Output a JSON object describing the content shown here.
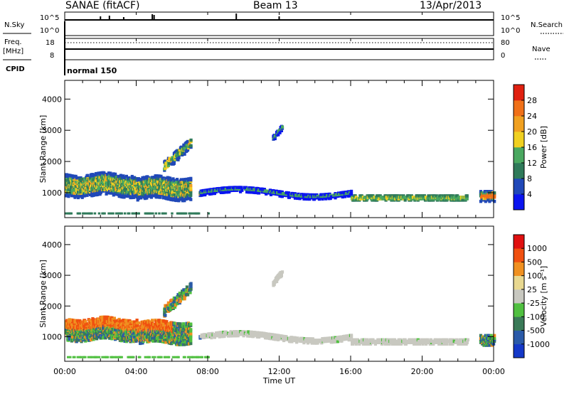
{
  "header": {
    "station": "SANAE (fitACF)",
    "beam": "Beam 13",
    "date": "13/Apr/2013"
  },
  "summary_panel": {
    "nsky_label": "N.Sky",
    "nsky_ticks": [
      "10^5",
      "10^0"
    ],
    "nsearch_label": "N.Search",
    "nsearch_ticks": [
      "10^5",
      "10^0"
    ],
    "freq_label_line1": "Freq.",
    "freq_label_line2": "[MHz]",
    "freq_ticks": [
      "18",
      "8"
    ],
    "nave_label": "Nave",
    "nave_ticks": [
      "80",
      "0"
    ],
    "cpid_label": "CPID",
    "cpid_value": "normal 150"
  },
  "chart_data": [
    {
      "type": "heatmap",
      "title": "",
      "xlabel": "",
      "ylabel": "Slant Range [km]",
      "y_ticks": [
        "1000",
        "2000",
        "3000",
        "4000"
      ],
      "ylim": [
        200,
        4600
      ],
      "xlim": [
        0,
        24
      ],
      "colorbar": {
        "label": "Power [dB]",
        "ticks": [
          "4",
          "8",
          "12",
          "16",
          "20",
          "24",
          "28"
        ],
        "colors": [
          "#0a14f0",
          "#2048b8",
          "#2f7a5a",
          "#4aa860",
          "#f0d020",
          "#f0a020",
          "#f07018",
          "#e02010"
        ]
      }
    },
    {
      "type": "heatmap",
      "title": "",
      "xlabel": "Time UT",
      "ylabel": "Slant Range [km]",
      "y_ticks": [
        "1000",
        "2000",
        "3000",
        "4000"
      ],
      "x_ticks": [
        "00:00",
        "04:00",
        "08:00",
        "12:00",
        "16:00",
        "20:00",
        "00:00"
      ],
      "ylim": [
        200,
        4600
      ],
      "xlim": [
        0,
        24
      ],
      "colorbar": {
        "label": "Velocity [m s⁻¹]",
        "ticks": [
          "1000",
          "500",
          "100",
          "25",
          "-25",
          "-100",
          "-500",
          "-1000"
        ],
        "colors": [
          "#1438c8",
          "#2a5aa8",
          "#3a7a58",
          "#50c040",
          "#c8c8c0",
          "#e8d890",
          "#f09020",
          "#f05010",
          "#e01010"
        ]
      }
    }
  ]
}
